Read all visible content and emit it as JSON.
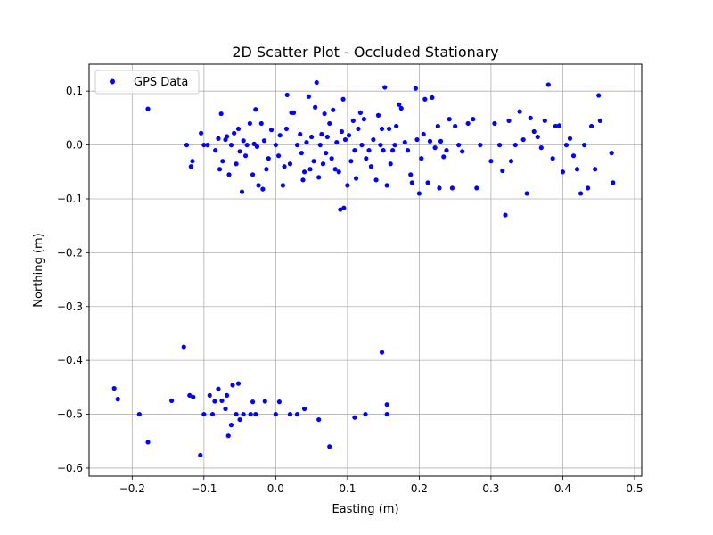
{
  "chart_data": {
    "type": "scatter",
    "title": "2D Scatter Plot - Occluded Stationary",
    "xlabel": "Easting (m)",
    "ylabel": "Northing (m)",
    "xlim": [
      -0.26,
      0.51
    ],
    "ylim": [
      -0.615,
      0.15
    ],
    "xticks": [
      -0.2,
      -0.1,
      0.0,
      0.1,
      0.2,
      0.3,
      0.4,
      0.5
    ],
    "xtick_labels": [
      "−0.2",
      "−0.1",
      "0.0",
      "0.1",
      "0.2",
      "0.3",
      "0.4",
      "0.5"
    ],
    "yticks": [
      0.1,
      0.0,
      -0.1,
      -0.2,
      -0.3,
      -0.4,
      -0.5,
      -0.6
    ],
    "ytick_labels": [
      "0.1",
      "0.0",
      "−0.1",
      "−0.2",
      "−0.3",
      "−0.4",
      "−0.5",
      "−0.6"
    ],
    "grid": true,
    "legend": "top-left",
    "series": [
      {
        "name": "GPS Data",
        "color": "#0000ff",
        "marker": "circle",
        "points": [
          [
            -0.178,
            0.067
          ],
          [
            -0.124,
            0.0
          ],
          [
            -0.116,
            -0.03
          ],
          [
            -0.118,
            -0.04
          ],
          [
            -0.104,
            0.022
          ],
          [
            -0.1,
            0.0
          ],
          [
            -0.095,
            0.0
          ],
          [
            -0.084,
            -0.01
          ],
          [
            -0.08,
            0.012
          ],
          [
            -0.078,
            -0.045
          ],
          [
            -0.076,
            0.058
          ],
          [
            -0.074,
            -0.03
          ],
          [
            -0.07,
            0.01
          ],
          [
            -0.068,
            0.016
          ],
          [
            -0.065,
            -0.055
          ],
          [
            -0.062,
            0.0
          ],
          [
            -0.058,
            0.022
          ],
          [
            -0.055,
            -0.035
          ],
          [
            -0.052,
            0.03
          ],
          [
            -0.05,
            -0.012
          ],
          [
            -0.047,
            -0.087
          ],
          [
            -0.045,
            0.008
          ],
          [
            -0.042,
            -0.02
          ],
          [
            -0.04,
            0.0
          ],
          [
            -0.036,
            0.04
          ],
          [
            -0.032,
            -0.055
          ],
          [
            -0.03,
            0.002
          ],
          [
            -0.028,
            0.066
          ],
          [
            -0.026,
            -0.003
          ],
          [
            -0.024,
            -0.075
          ],
          [
            -0.02,
            0.04
          ],
          [
            -0.018,
            -0.082
          ],
          [
            -0.016,
            0.008
          ],
          [
            -0.013,
            -0.045
          ],
          [
            -0.01,
            -0.025
          ],
          [
            -0.006,
            0.028
          ],
          [
            0.0,
            0.0
          ],
          [
            0.004,
            -0.02
          ],
          [
            0.006,
            0.018
          ],
          [
            0.01,
            -0.075
          ],
          [
            0.012,
            -0.04
          ],
          [
            0.015,
            0.03
          ],
          [
            0.016,
            0.093
          ],
          [
            0.02,
            -0.035
          ],
          [
            0.022,
            0.06
          ],
          [
            0.025,
            0.06
          ],
          [
            0.03,
            0.0
          ],
          [
            0.034,
            0.02
          ],
          [
            0.036,
            -0.015
          ],
          [
            0.038,
            -0.065
          ],
          [
            0.04,
            -0.05
          ],
          [
            0.043,
            0.005
          ],
          [
            0.046,
            0.09
          ],
          [
            0.048,
            -0.045
          ],
          [
            0.05,
            0.015
          ],
          [
            0.053,
            -0.03
          ],
          [
            0.055,
            0.07
          ],
          [
            0.057,
            0.116
          ],
          [
            0.06,
            -0.06
          ],
          [
            0.062,
            0.0
          ],
          [
            0.064,
            0.02
          ],
          [
            0.066,
            -0.035
          ],
          [
            0.068,
            0.058
          ],
          [
            0.07,
            -0.015
          ],
          [
            0.072,
            0.015
          ],
          [
            0.075,
            0.04
          ],
          [
            0.078,
            -0.025
          ],
          [
            0.08,
            0.065
          ],
          [
            0.083,
            -0.045
          ],
          [
            0.085,
            0.005
          ],
          [
            0.088,
            -0.05
          ],
          [
            0.09,
            -0.12
          ],
          [
            0.092,
            0.025
          ],
          [
            0.094,
            0.085
          ],
          [
            0.095,
            -0.117
          ],
          [
            0.097,
            0.01
          ],
          [
            0.1,
            -0.075
          ],
          [
            0.102,
            0.018
          ],
          [
            0.105,
            -0.03
          ],
          [
            0.108,
            0.045
          ],
          [
            0.11,
            -0.01
          ],
          [
            0.112,
            -0.062
          ],
          [
            0.115,
            0.03
          ],
          [
            0.118,
            0.06
          ],
          [
            0.12,
            0.0
          ],
          [
            0.123,
            0.048
          ],
          [
            0.126,
            -0.025
          ],
          [
            0.13,
            -0.01
          ],
          [
            0.133,
            -0.04
          ],
          [
            0.136,
            0.01
          ],
          [
            0.14,
            -0.065
          ],
          [
            0.143,
            0.055
          ],
          [
            0.146,
            0.0
          ],
          [
            0.148,
            0.03
          ],
          [
            0.15,
            -0.01
          ],
          [
            0.152,
            0.107
          ],
          [
            0.155,
            -0.075
          ],
          [
            0.158,
            0.03
          ],
          [
            0.16,
            -0.035
          ],
          [
            0.163,
            -0.01
          ],
          [
            0.166,
            0.0
          ],
          [
            0.168,
            0.035
          ],
          [
            0.172,
            0.075
          ],
          [
            0.175,
            0.068
          ],
          [
            0.18,
            0.005
          ],
          [
            0.184,
            -0.01
          ],
          [
            0.188,
            -0.055
          ],
          [
            0.19,
            -0.07
          ],
          [
            0.195,
            0.105
          ],
          [
            0.197,
            0.01
          ],
          [
            0.2,
            -0.09
          ],
          [
            0.203,
            -0.025
          ],
          [
            0.206,
            0.02
          ],
          [
            0.208,
            0.085
          ],
          [
            0.212,
            -0.07
          ],
          [
            0.215,
            0.007
          ],
          [
            0.218,
            0.088
          ],
          [
            0.222,
            -0.005
          ],
          [
            0.226,
            0.035
          ],
          [
            0.228,
            -0.08
          ],
          [
            0.23,
            0.007
          ],
          [
            0.234,
            -0.022
          ],
          [
            0.238,
            -0.01
          ],
          [
            0.242,
            0.048
          ],
          [
            0.246,
            -0.08
          ],
          [
            0.25,
            0.035
          ],
          [
            0.255,
            0.0
          ],
          [
            0.26,
            -0.012
          ],
          [
            0.268,
            0.04
          ],
          [
            0.275,
            0.048
          ],
          [
            0.28,
            -0.08
          ],
          [
            0.285,
            0.0
          ],
          [
            0.3,
            -0.03
          ],
          [
            0.305,
            0.04
          ],
          [
            0.312,
            0.0
          ],
          [
            0.316,
            -0.048
          ],
          [
            0.32,
            -0.13
          ],
          [
            0.325,
            0.045
          ],
          [
            0.328,
            -0.03
          ],
          [
            0.334,
            0.0
          ],
          [
            0.34,
            0.062
          ],
          [
            0.345,
            0.01
          ],
          [
            0.35,
            -0.09
          ],
          [
            0.355,
            0.05
          ],
          [
            0.36,
            0.025
          ],
          [
            0.365,
            0.015
          ],
          [
            0.37,
            -0.005
          ],
          [
            0.375,
            0.045
          ],
          [
            0.38,
            0.112
          ],
          [
            0.386,
            -0.025
          ],
          [
            0.39,
            0.035
          ],
          [
            0.395,
            0.036
          ],
          [
            0.4,
            -0.05
          ],
          [
            0.405,
            0.0
          ],
          [
            0.41,
            0.012
          ],
          [
            0.415,
            -0.02
          ],
          [
            0.42,
            -0.045
          ],
          [
            0.425,
            -0.09
          ],
          [
            0.43,
            0.0
          ],
          [
            0.435,
            -0.08
          ],
          [
            0.44,
            0.035
          ],
          [
            0.445,
            -0.045
          ],
          [
            0.45,
            0.092
          ],
          [
            0.452,
            0.045
          ],
          [
            0.468,
            -0.015
          ],
          [
            0.47,
            -0.07
          ],
          [
            -0.225,
            -0.452
          ],
          [
            -0.22,
            -0.472
          ],
          [
            -0.19,
            -0.5
          ],
          [
            -0.178,
            -0.552
          ],
          [
            -0.145,
            -0.475
          ],
          [
            -0.128,
            -0.375
          ],
          [
            -0.12,
            -0.465
          ],
          [
            -0.115,
            -0.468
          ],
          [
            -0.105,
            -0.576
          ],
          [
            -0.1,
            -0.5
          ],
          [
            -0.092,
            -0.465
          ],
          [
            -0.088,
            -0.5
          ],
          [
            -0.085,
            -0.476
          ],
          [
            -0.08,
            -0.453
          ],
          [
            -0.075,
            -0.475
          ],
          [
            -0.07,
            -0.49
          ],
          [
            -0.068,
            -0.465
          ],
          [
            -0.066,
            -0.54
          ],
          [
            -0.062,
            -0.52
          ],
          [
            -0.06,
            -0.446
          ],
          [
            -0.055,
            -0.5
          ],
          [
            -0.052,
            -0.443
          ],
          [
            -0.05,
            -0.51
          ],
          [
            -0.045,
            -0.5
          ],
          [
            -0.035,
            -0.5
          ],
          [
            -0.032,
            -0.477
          ],
          [
            -0.028,
            -0.5
          ],
          [
            -0.015,
            -0.476
          ],
          [
            0.0,
            -0.5
          ],
          [
            0.005,
            -0.477
          ],
          [
            0.02,
            -0.5
          ],
          [
            0.03,
            -0.5
          ],
          [
            0.04,
            -0.49
          ],
          [
            0.06,
            -0.51
          ],
          [
            0.075,
            -0.56
          ],
          [
            0.11,
            -0.506
          ],
          [
            0.125,
            -0.5
          ],
          [
            0.148,
            -0.385
          ],
          [
            0.155,
            -0.482
          ],
          [
            0.155,
            -0.5
          ]
        ]
      }
    ]
  }
}
